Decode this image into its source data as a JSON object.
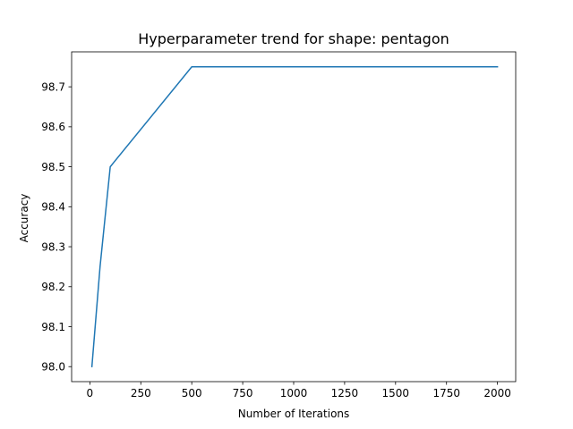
{
  "chart_data": {
    "type": "line",
    "title": "Hyperparameter trend for shape: pentagon",
    "xlabel": "Number of Iterations",
    "ylabel": "Accuracy",
    "xlim": [
      -89.5,
      2089.5
    ],
    "ylim": [
      97.9625,
      98.7875
    ],
    "xticks": [
      0,
      250,
      500,
      750,
      1000,
      1250,
      1500,
      1750,
      2000
    ],
    "yticks": [
      98.0,
      98.1,
      98.2,
      98.3,
      98.4,
      98.5,
      98.6,
      98.7
    ],
    "ytick_labels": [
      "98.0",
      "98.1",
      "98.2",
      "98.3",
      "98.4",
      "98.5",
      "98.6",
      "98.7"
    ],
    "grid": false,
    "series": [
      {
        "color": "#1f77b4",
        "x": [
          10,
          50,
          100,
          500,
          1000,
          2000
        ],
        "y": [
          98.0,
          98.25,
          98.5,
          98.75,
          98.75,
          98.75
        ]
      }
    ]
  }
}
